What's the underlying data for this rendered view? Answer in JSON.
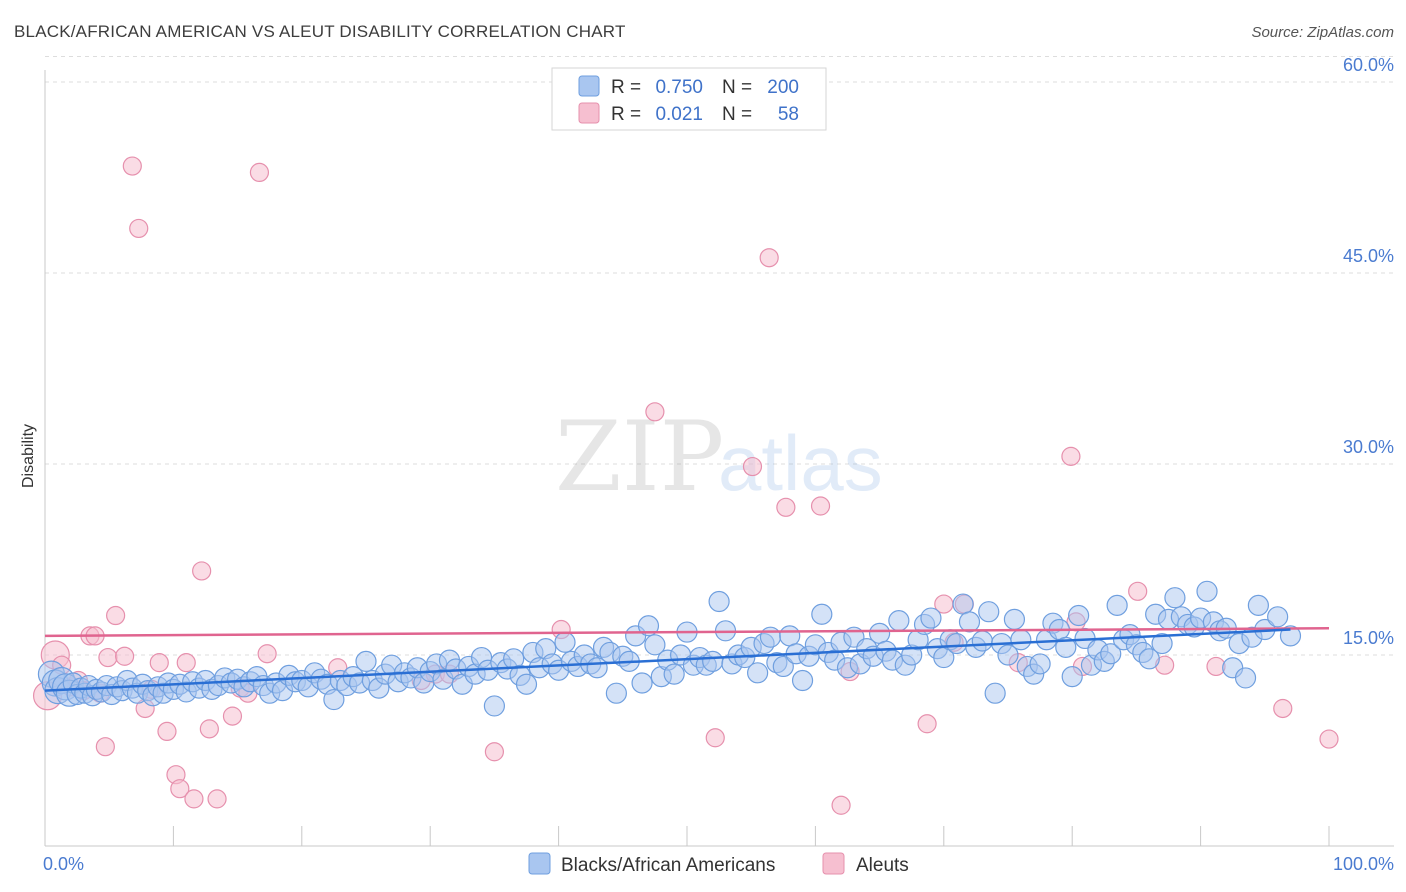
{
  "title": "BLACK/AFRICAN AMERICAN VS ALEUT DISABILITY CORRELATION CHART",
  "source": "Source: ZipAtlas.com",
  "watermark": {
    "zip": "ZIP",
    "atlas": "atlas"
  },
  "colors": {
    "blue_fill": "#a9c6f0",
    "blue_stroke": "#6f9fdf",
    "blue_line": "#2a6fd4",
    "pink_fill": "#f6bfd0",
    "pink_stroke": "#e690ad",
    "pink_line": "#e0648f",
    "tick_text": "#4a7bd0",
    "grid": "#dddddd"
  },
  "legend_top": {
    "rows": [
      {
        "r_label": "R =",
        "r_value": "0.750",
        "n_label": "N =",
        "n_value": "200"
      },
      {
        "r_label": "R =",
        "r_value": "0.021",
        "n_label": "N =",
        "n_value": "58"
      }
    ]
  },
  "legend_bottom": [
    "Blacks/African Americans",
    "Aleuts"
  ],
  "chart_data": {
    "type": "scatter",
    "title": "BLACK/AFRICAN AMERICAN VS ALEUT DISABILITY CORRELATION CHART",
    "xlabel": "",
    "ylabel": "Disability",
    "xlim": [
      0,
      100
    ],
    "ylim": [
      0,
      62
    ],
    "x_tick_labels": [
      "0.0%",
      "100.0%"
    ],
    "y_ticks": [
      15,
      30,
      45,
      60
    ],
    "y_tick_labels": [
      "15.0%",
      "30.0%",
      "45.0%",
      "60.0%"
    ],
    "grid": true,
    "legend_position": "top-center",
    "series": [
      {
        "name": "Blacks/African Americans",
        "r": 0.75,
        "n": 200,
        "trend": {
          "x": [
            0,
            97
          ],
          "y": [
            12.2,
            17.0
          ]
        },
        "points": [
          [
            0.5,
            13.5
          ],
          [
            0.8,
            12.8
          ],
          [
            1.0,
            12.2
          ],
          [
            1.3,
            13.0
          ],
          [
            1.6,
            12.5
          ],
          [
            1.9,
            12.0
          ],
          [
            2.2,
            12.8
          ],
          [
            2.5,
            11.9
          ],
          [
            2.8,
            12.4
          ],
          [
            3.1,
            12.0
          ],
          [
            3.4,
            12.6
          ],
          [
            3.7,
            11.8
          ],
          [
            4.0,
            12.3
          ],
          [
            4.4,
            12.1
          ],
          [
            4.8,
            12.6
          ],
          [
            5.2,
            11.9
          ],
          [
            5.6,
            12.5
          ],
          [
            6.0,
            12.2
          ],
          [
            6.4,
            13.0
          ],
          [
            6.8,
            12.4
          ],
          [
            7.2,
            12.0
          ],
          [
            7.6,
            12.7
          ],
          [
            8.0,
            12.2
          ],
          [
            8.4,
            11.8
          ],
          [
            8.8,
            12.5
          ],
          [
            9.2,
            12.0
          ],
          [
            9.6,
            12.8
          ],
          [
            10.0,
            12.3
          ],
          [
            10.5,
            12.7
          ],
          [
            11.0,
            12.1
          ],
          [
            11.5,
            12.9
          ],
          [
            12.0,
            12.4
          ],
          [
            12.5,
            13.0
          ],
          [
            13.0,
            12.3
          ],
          [
            13.5,
            12.6
          ],
          [
            14.0,
            13.2
          ],
          [
            14.5,
            12.8
          ],
          [
            15.0,
            13.1
          ],
          [
            15.5,
            12.5
          ],
          [
            16.0,
            12.9
          ],
          [
            16.5,
            13.3
          ],
          [
            17.0,
            12.6
          ],
          [
            17.5,
            12.0
          ],
          [
            18.0,
            12.8
          ],
          [
            18.5,
            12.2
          ],
          [
            19.0,
            13.4
          ],
          [
            19.5,
            12.9
          ],
          [
            20.0,
            13.0
          ],
          [
            20.5,
            12.5
          ],
          [
            21.0,
            13.6
          ],
          [
            21.5,
            13.1
          ],
          [
            22.0,
            12.7
          ],
          [
            22.5,
            11.5
          ],
          [
            23.0,
            13.0
          ],
          [
            23.5,
            12.6
          ],
          [
            24.0,
            13.3
          ],
          [
            24.5,
            12.8
          ],
          [
            25.0,
            14.5
          ],
          [
            25.5,
            13.0
          ],
          [
            26.0,
            12.4
          ],
          [
            26.5,
            13.5
          ],
          [
            27.0,
            14.2
          ],
          [
            27.5,
            12.9
          ],
          [
            28.0,
            13.6
          ],
          [
            28.5,
            13.2
          ],
          [
            29.0,
            14.0
          ],
          [
            29.5,
            12.8
          ],
          [
            30.0,
            13.7
          ],
          [
            30.5,
            14.3
          ],
          [
            31.0,
            13.1
          ],
          [
            31.5,
            14.6
          ],
          [
            32.0,
            13.9
          ],
          [
            32.5,
            12.7
          ],
          [
            33.0,
            14.1
          ],
          [
            33.5,
            13.5
          ],
          [
            34.0,
            14.8
          ],
          [
            34.5,
            13.8
          ],
          [
            35.0,
            11.0
          ],
          [
            35.5,
            14.4
          ],
          [
            36.0,
            13.9
          ],
          [
            36.5,
            14.7
          ],
          [
            37.0,
            13.4
          ],
          [
            37.5,
            12.7
          ],
          [
            38.0,
            15.2
          ],
          [
            38.5,
            14.0
          ],
          [
            39.0,
            15.5
          ],
          [
            39.5,
            14.3
          ],
          [
            40.0,
            13.8
          ],
          [
            40.5,
            16.0
          ],
          [
            41.0,
            14.5
          ],
          [
            41.5,
            14.1
          ],
          [
            42.0,
            15.0
          ],
          [
            42.5,
            14.3
          ],
          [
            43.0,
            14.0
          ],
          [
            43.5,
            15.6
          ],
          [
            44.0,
            15.2
          ],
          [
            44.5,
            12.0
          ],
          [
            45.0,
            14.9
          ],
          [
            45.5,
            14.5
          ],
          [
            46.0,
            16.5
          ],
          [
            46.5,
            12.8
          ],
          [
            47.0,
            17.3
          ],
          [
            47.5,
            15.8
          ],
          [
            48.0,
            13.3
          ],
          [
            48.5,
            14.6
          ],
          [
            49.0,
            13.5
          ],
          [
            49.5,
            15.0
          ],
          [
            50.0,
            16.8
          ],
          [
            50.5,
            14.2
          ],
          [
            51.0,
            14.8
          ],
          [
            51.5,
            14.2
          ],
          [
            52.0,
            14.5
          ],
          [
            52.5,
            19.2
          ],
          [
            53.0,
            16.9
          ],
          [
            53.5,
            14.3
          ],
          [
            54.0,
            15.0
          ],
          [
            54.5,
            14.8
          ],
          [
            55.0,
            15.6
          ],
          [
            55.5,
            13.6
          ],
          [
            56.0,
            15.9
          ],
          [
            56.5,
            16.4
          ],
          [
            57.0,
            14.4
          ],
          [
            57.5,
            14.1
          ],
          [
            58.0,
            16.5
          ],
          [
            58.5,
            15.1
          ],
          [
            59.0,
            13.0
          ],
          [
            59.5,
            14.9
          ],
          [
            60.0,
            15.8
          ],
          [
            60.5,
            18.2
          ],
          [
            61.0,
            15.2
          ],
          [
            61.5,
            14.6
          ],
          [
            62.0,
            16.0
          ],
          [
            62.5,
            14.0
          ],
          [
            63.0,
            16.4
          ],
          [
            63.5,
            14.3
          ],
          [
            64.0,
            15.5
          ],
          [
            64.5,
            14.9
          ],
          [
            65.0,
            16.7
          ],
          [
            65.5,
            15.3
          ],
          [
            66.0,
            14.6
          ],
          [
            66.5,
            17.7
          ],
          [
            67.0,
            14.2
          ],
          [
            67.5,
            15.0
          ],
          [
            68.0,
            16.2
          ],
          [
            68.5,
            17.4
          ],
          [
            69.0,
            17.9
          ],
          [
            69.5,
            15.5
          ],
          [
            70.0,
            14.8
          ],
          [
            70.5,
            16.2
          ],
          [
            71.0,
            15.9
          ],
          [
            71.5,
            19.0
          ],
          [
            72.0,
            17.6
          ],
          [
            72.5,
            15.6
          ],
          [
            73.0,
            16.1
          ],
          [
            73.5,
            18.4
          ],
          [
            74.0,
            12.0
          ],
          [
            74.5,
            15.9
          ],
          [
            75.0,
            15.0
          ],
          [
            75.5,
            17.8
          ],
          [
            76.0,
            16.2
          ],
          [
            76.5,
            14.1
          ],
          [
            77.0,
            13.5
          ],
          [
            77.5,
            14.3
          ],
          [
            78.0,
            16.2
          ],
          [
            78.5,
            17.5
          ],
          [
            79.0,
            17.0
          ],
          [
            79.5,
            15.6
          ],
          [
            80.0,
            13.3
          ],
          [
            80.5,
            18.1
          ],
          [
            81.0,
            16.3
          ],
          [
            81.5,
            14.2
          ],
          [
            82.0,
            15.4
          ],
          [
            82.5,
            14.5
          ],
          [
            83.0,
            15.1
          ],
          [
            83.5,
            18.9
          ],
          [
            84.0,
            16.2
          ],
          [
            84.5,
            16.6
          ],
          [
            85.0,
            15.8
          ],
          [
            85.5,
            15.2
          ],
          [
            86.0,
            14.7
          ],
          [
            86.5,
            18.2
          ],
          [
            87.0,
            15.9
          ],
          [
            87.5,
            17.8
          ],
          [
            88.0,
            19.5
          ],
          [
            88.5,
            18.0
          ],
          [
            89.0,
            17.4
          ],
          [
            89.5,
            17.2
          ],
          [
            90.0,
            17.9
          ],
          [
            90.5,
            20.0
          ],
          [
            91.0,
            17.6
          ],
          [
            91.5,
            16.9
          ],
          [
            92.0,
            17.1
          ],
          [
            92.5,
            14.0
          ],
          [
            93.0,
            15.9
          ],
          [
            93.5,
            13.2
          ],
          [
            94.0,
            16.4
          ],
          [
            94.5,
            18.9
          ],
          [
            95.0,
            17.0
          ],
          [
            96.0,
            18.0
          ],
          [
            97.0,
            16.5
          ]
        ]
      },
      {
        "name": "Aleuts",
        "r": 0.021,
        "n": 58,
        "trend": {
          "x": [
            0,
            100
          ],
          "y": [
            16.5,
            17.1
          ]
        },
        "points": [
          [
            0.2,
            11.8
          ],
          [
            0.8,
            15.0
          ],
          [
            1.3,
            14.2
          ],
          [
            2.0,
            12.5
          ],
          [
            2.6,
            13.0
          ],
          [
            3.0,
            12.2
          ],
          [
            3.5,
            16.5
          ],
          [
            3.9,
            16.5
          ],
          [
            4.3,
            12.0
          ],
          [
            4.7,
            7.8
          ],
          [
            4.9,
            14.8
          ],
          [
            5.5,
            18.1
          ],
          [
            6.2,
            14.9
          ],
          [
            6.8,
            53.4
          ],
          [
            7.3,
            48.5
          ],
          [
            7.8,
            10.8
          ],
          [
            8.3,
            12.3
          ],
          [
            8.9,
            14.4
          ],
          [
            9.5,
            9.0
          ],
          [
            10.2,
            5.6
          ],
          [
            10.5,
            4.5
          ],
          [
            11.0,
            14.4
          ],
          [
            11.6,
            3.7
          ],
          [
            12.2,
            21.6
          ],
          [
            12.8,
            9.2
          ],
          [
            13.4,
            3.7
          ],
          [
            14.6,
            10.2
          ],
          [
            15.2,
            12.4
          ],
          [
            15.8,
            12.0
          ],
          [
            16.7,
            52.9
          ],
          [
            17.3,
            15.1
          ],
          [
            22.8,
            14.0
          ],
          [
            29.3,
            13.0
          ],
          [
            30.4,
            13.5
          ],
          [
            31.5,
            13.5
          ],
          [
            35.0,
            7.4
          ],
          [
            40.2,
            17.0
          ],
          [
            47.5,
            34.1
          ],
          [
            52.2,
            8.5
          ],
          [
            55.1,
            29.8
          ],
          [
            56.4,
            46.2
          ],
          [
            57.7,
            26.6
          ],
          [
            60.4,
            26.7
          ],
          [
            62.0,
            3.2
          ],
          [
            62.7,
            13.7
          ],
          [
            68.7,
            9.6
          ],
          [
            70.0,
            19.0
          ],
          [
            70.8,
            16.0
          ],
          [
            71.6,
            19.0
          ],
          [
            75.8,
            14.4
          ],
          [
            79.9,
            30.6
          ],
          [
            80.3,
            17.6
          ],
          [
            80.8,
            14.1
          ],
          [
            85.1,
            20.0
          ],
          [
            87.2,
            14.2
          ],
          [
            91.2,
            14.1
          ],
          [
            96.4,
            10.8
          ],
          [
            100.0,
            8.4
          ]
        ]
      }
    ]
  }
}
